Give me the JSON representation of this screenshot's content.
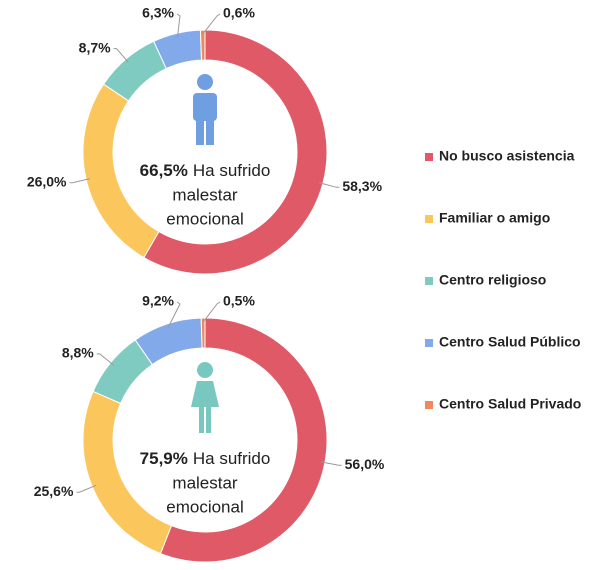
{
  "chart_data": [
    {
      "type": "pie",
      "categories": [
        "No busco asistencia",
        "Familiar o amigo",
        "Centro religioso",
        "Centro Salud Público",
        "Centro Salud Privado"
      ],
      "values": [
        58.3,
        26.0,
        8.7,
        6.3,
        0.6
      ],
      "value_labels": [
        "58,3%",
        "26,0%",
        "8,7%",
        "6,3%",
        "0,6%"
      ],
      "colors": [
        "#df5966",
        "#fbc65c",
        "#7fcbc2",
        "#82a9ea",
        "#f08a5d"
      ],
      "center_value_label": "66,5%",
      "center_text": [
        "Ha sufrido",
        "malestar",
        "emocional"
      ],
      "icon_color": "#6f9fe0"
    },
    {
      "type": "pie",
      "categories": [
        "No busco asistencia",
        "Familiar o amigo",
        "Centro religioso",
        "Centro Salud Público",
        "Centro Salud Privado"
      ],
      "values": [
        56.0,
        25.6,
        8.8,
        9.2,
        0.5
      ],
      "value_labels": [
        "56,0%",
        "25,6%",
        "8,8%",
        "9,2%",
        "0,5%"
      ],
      "colors": [
        "#df5966",
        "#fbc65c",
        "#7fcbc2",
        "#82a9ea",
        "#f08a5d"
      ],
      "center_value_label": "75,9%",
      "center_text": [
        "Ha sufrido",
        "malestar",
        "emocional"
      ],
      "icon_color": "#79c8c0"
    }
  ]
}
